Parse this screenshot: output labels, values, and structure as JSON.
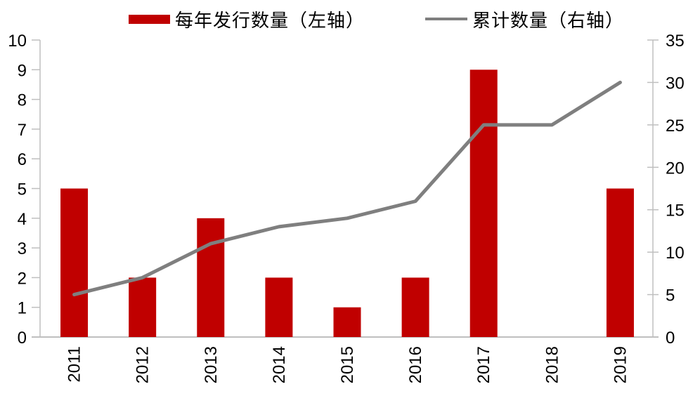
{
  "legend": {
    "items": [
      {
        "label": "每年发行数量（左轴）",
        "swatch": "bar-swatch",
        "color": "#c00000"
      },
      {
        "label": "累计数量（右轴）",
        "swatch": "line-swatch",
        "color": "#7f7f7f"
      }
    ]
  },
  "chart_data": {
    "type": "combo-bar-line",
    "title": "",
    "categories": [
      "2011",
      "2012",
      "2013",
      "2014",
      "2015",
      "2016",
      "2017",
      "2018",
      "2019"
    ],
    "series": [
      {
        "name": "每年发行数量（左轴）",
        "chart_type": "bar",
        "axis": "left",
        "color": "#c00000",
        "values": [
          5,
          2,
          4,
          2,
          1,
          2,
          9,
          0,
          5
        ]
      },
      {
        "name": "累计数量（右轴）",
        "chart_type": "line",
        "axis": "right",
        "color": "#7f7f7f",
        "values": [
          5,
          7,
          11,
          13,
          14,
          16,
          25,
          25,
          30
        ]
      }
    ],
    "axes": {
      "left": {
        "min": 0,
        "max": 10,
        "step": 1,
        "tick_labels": [
          "0",
          "1",
          "2",
          "3",
          "4",
          "5",
          "6",
          "7",
          "8",
          "9",
          "10"
        ]
      },
      "right": {
        "min": 0,
        "max": 35,
        "step": 5,
        "tick_labels": [
          "0",
          "5",
          "10",
          "15",
          "20",
          "25",
          "30",
          "35"
        ]
      }
    },
    "legend_position": "top",
    "grid": false,
    "axis_color": "#bfbfbf",
    "label_color": "#000000",
    "background": "#ffffff"
  }
}
